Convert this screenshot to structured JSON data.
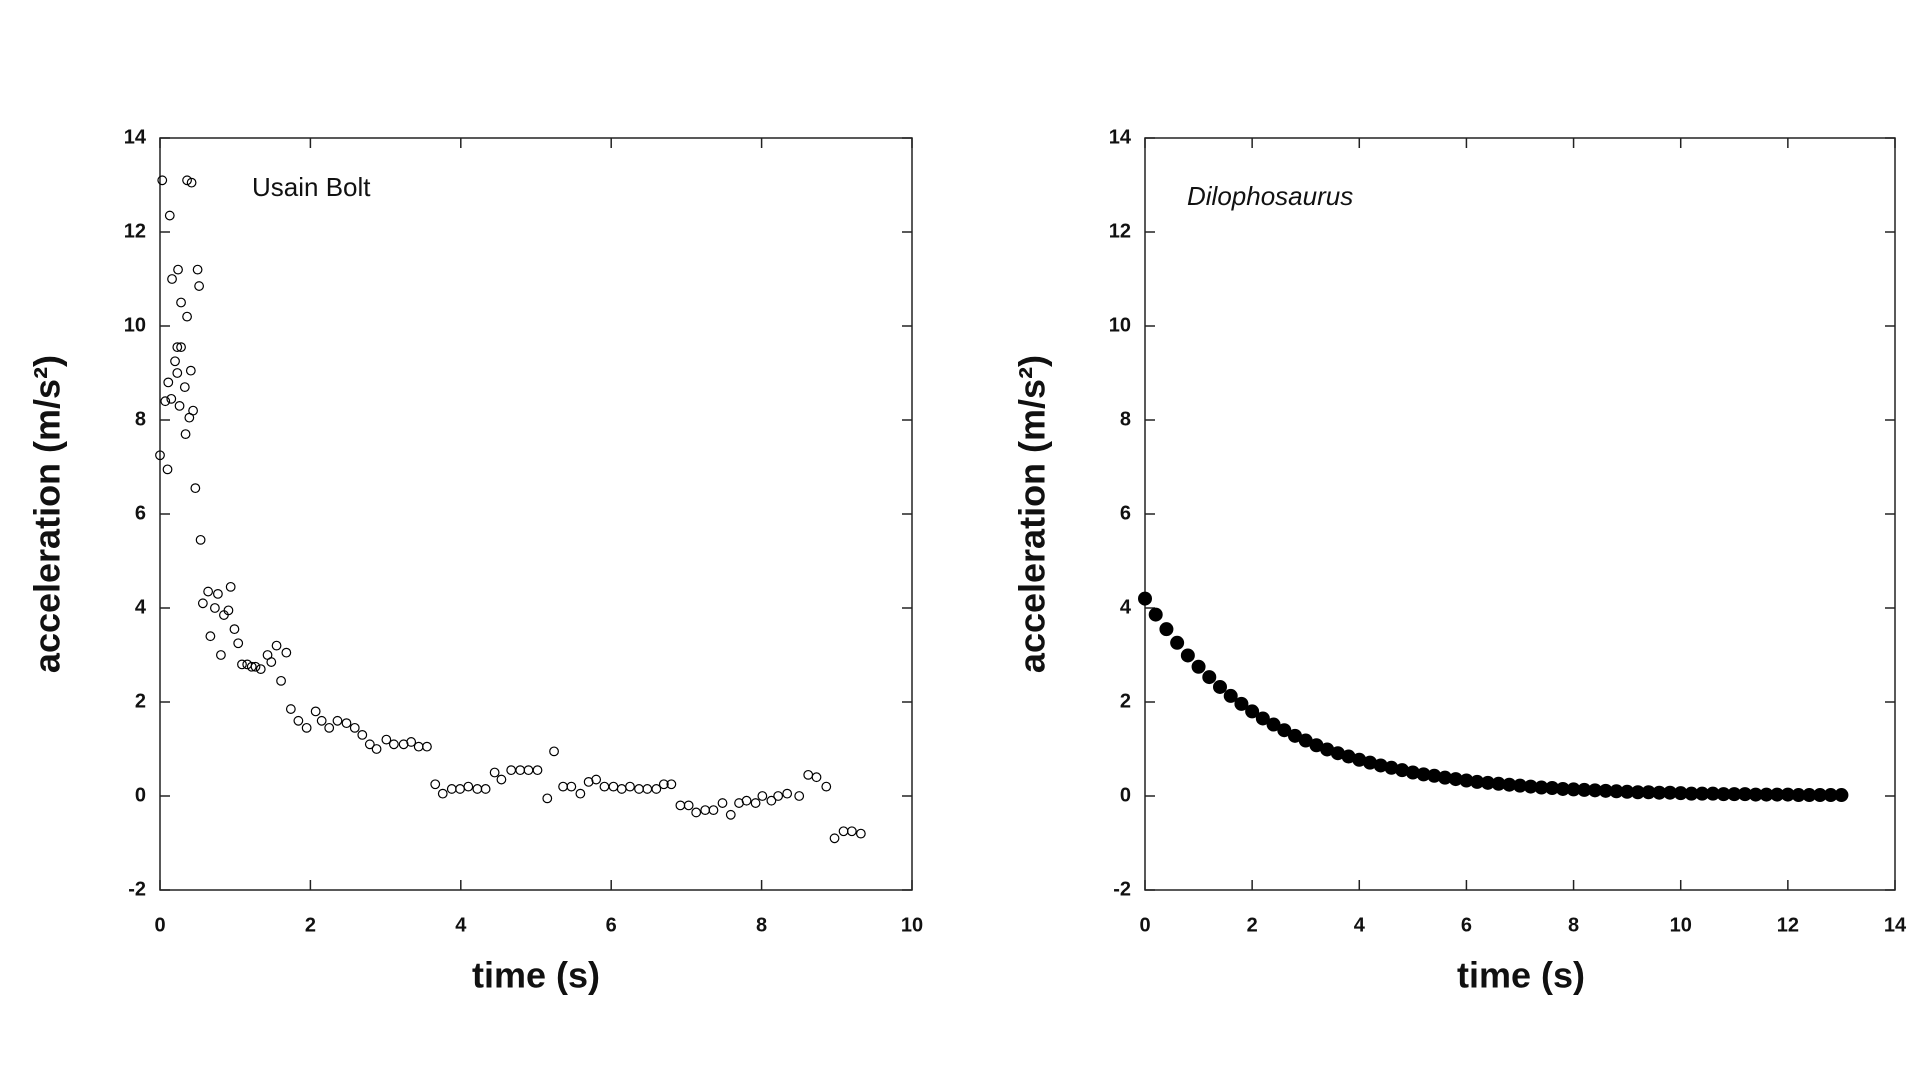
{
  "chart_data": [
    {
      "type": "scatter",
      "annotation": "Usain Bolt",
      "annotation_style": "normal",
      "x_label": "time (s)",
      "y_label": "acceleration (m/s²)",
      "marker": "open",
      "color": "#000000",
      "xlim": [
        0,
        10
      ],
      "ylim": [
        -2,
        14
      ],
      "xticks": [
        0,
        2,
        4,
        6,
        8,
        10
      ],
      "yticks": [
        -2,
        0,
        2,
        4,
        6,
        8,
        10,
        12,
        14
      ],
      "x": [
        0.03,
        0,
        0.07,
        0.1,
        0.11,
        0.13,
        0.16,
        0.2,
        0.15,
        0.23,
        0.24,
        0.23,
        0.28,
        0.28,
        0.26,
        0.33,
        0.34,
        0.36,
        0.36,
        0.39,
        0.41,
        0.42,
        0.44,
        0.47,
        0.5,
        0.52,
        0.54,
        0.57,
        0.64,
        0.67,
        0.73,
        0.77,
        0.81,
        0.85,
        0.91,
        0.94,
        0.99,
        1.04,
        1.09,
        1.16,
        1.22,
        1.27,
        1.34,
        1.43,
        1.48,
        1.55,
        1.61,
        1.68,
        1.74,
        1.84,
        1.95,
        2.07,
        2.15,
        2.25,
        2.36,
        2.48,
        2.59,
        2.69,
        2.79,
        2.88,
        3.01,
        3.11,
        3.24,
        3.34,
        3.44,
        3.55,
        3.66,
        3.76,
        3.88,
        3.99,
        4.1,
        4.22,
        4.33,
        4.45,
        4.54,
        4.67,
        4.79,
        4.9,
        5.02,
        5.15,
        5.24,
        5.36,
        5.47,
        5.59,
        5.7,
        5.8,
        5.91,
        6.03,
        6.14,
        6.25,
        6.37,
        6.48,
        6.6,
        6.7,
        6.8,
        6.92,
        7.03,
        7.13,
        7.25,
        7.36,
        7.48,
        7.59,
        7.7,
        7.8,
        7.92,
        8.01,
        8.13,
        8.22,
        8.34,
        8.5,
        8.62,
        8.73,
        8.86,
        8.97,
        9.09,
        9.2,
        9.32
      ],
      "y": [
        13.1,
        7.25,
        8.4,
        6.95,
        8.8,
        12.35,
        11.0,
        9.25,
        8.45,
        9.55,
        11.2,
        9.0,
        9.55,
        10.5,
        8.3,
        8.7,
        7.7,
        10.2,
        13.1,
        8.05,
        9.05,
        13.05,
        8.2,
        6.55,
        11.2,
        10.85,
        5.45,
        4.1,
        4.35,
        3.4,
        4.0,
        4.3,
        3.0,
        3.85,
        3.95,
        4.45,
        3.55,
        3.25,
        2.8,
        2.8,
        2.75,
        2.75,
        2.7,
        3.0,
        2.85,
        3.2,
        2.45,
        3.05,
        1.85,
        1.6,
        1.45,
        1.8,
        1.6,
        1.45,
        1.6,
        1.55,
        1.45,
        1.3,
        1.1,
        1.0,
        1.2,
        1.1,
        1.1,
        1.15,
        1.05,
        1.05,
        0.25,
        0.05,
        0.15,
        0.15,
        0.2,
        0.15,
        0.15,
        0.5,
        0.35,
        0.55,
        0.55,
        0.55,
        0.55,
        -0.05,
        0.95,
        0.2,
        0.2,
        0.05,
        0.3,
        0.35,
        0.2,
        0.2,
        0.15,
        0.2,
        0.15,
        0.15,
        0.15,
        0.25,
        0.25,
        -0.2,
        -0.2,
        -0.35,
        -0.3,
        -0.3,
        -0.15,
        -0.4,
        -0.15,
        -0.1,
        -0.15,
        0,
        -0.1,
        0,
        0.05,
        0,
        0.45,
        0.4,
        0.2,
        -0.9,
        -0.75,
        -0.75,
        -0.8
      ]
    },
    {
      "type": "scatter",
      "annotation": "Dilophosaurus",
      "annotation_style": "italic",
      "x_label": "time (s)",
      "y_label": "acceleration (m/s²)",
      "marker": "filled",
      "color": "#000000",
      "xlim": [
        0,
        14
      ],
      "ylim": [
        -2,
        14
      ],
      "xticks": [
        0,
        2,
        4,
        6,
        8,
        10,
        12,
        14
      ],
      "yticks": [
        -2,
        0,
        2,
        4,
        6,
        8,
        10,
        12,
        14
      ],
      "x": [
        0,
        0.2,
        0.4,
        0.6,
        0.8,
        1,
        1.2,
        1.4,
        1.6,
        1.8,
        2,
        2.2,
        2.4,
        2.6,
        2.8,
        3,
        3.2,
        3.4,
        3.6,
        3.8,
        4,
        4.2,
        4.4,
        4.6,
        4.8,
        5,
        5.2,
        5.4,
        5.6,
        5.8,
        6,
        6.2,
        6.4,
        6.6,
        6.8,
        7,
        7.2,
        7.4,
        7.6,
        7.8,
        8,
        8.2,
        8.4,
        8.6,
        8.8,
        9,
        9.2,
        9.4,
        9.6,
        9.8,
        10,
        10.2,
        10.4,
        10.6,
        10.8,
        11,
        11.2,
        11.4,
        11.6,
        11.8,
        12,
        12.2,
        12.4,
        12.6,
        12.8,
        13
      ],
      "y": [
        4.2,
        3.86,
        3.55,
        3.26,
        2.99,
        2.75,
        2.53,
        2.32,
        2.13,
        1.96,
        1.8,
        1.65,
        1.52,
        1.4,
        1.28,
        1.18,
        1.08,
        0.99,
        0.91,
        0.84,
        0.77,
        0.71,
        0.65,
        0.6,
        0.55,
        0.5,
        0.46,
        0.43,
        0.39,
        0.36,
        0.33,
        0.3,
        0.28,
        0.26,
        0.24,
        0.22,
        0.2,
        0.18,
        0.17,
        0.15,
        0.14,
        0.13,
        0.12,
        0.11,
        0.1,
        0.09,
        0.08,
        0.08,
        0.07,
        0.07,
        0.06,
        0.05,
        0.05,
        0.05,
        0.04,
        0.04,
        0.04,
        0.03,
        0.03,
        0.03,
        0.03,
        0.02,
        0.02,
        0.02,
        0.02,
        0.02
      ]
    }
  ]
}
